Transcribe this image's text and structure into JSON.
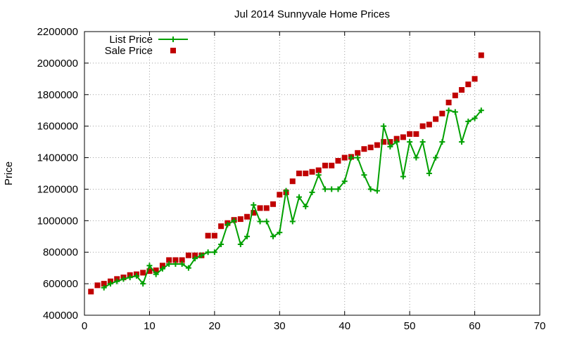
{
  "chart_data": {
    "type": "line",
    "title": "Jul 2014 Sunnyvale Home Prices",
    "xlabel": "",
    "ylabel": "Price",
    "xlim": [
      0,
      70
    ],
    "ylim": [
      400000,
      2200000
    ],
    "xticks": [
      0,
      10,
      20,
      30,
      40,
      50,
      60,
      70
    ],
    "yticks": [
      400000,
      600000,
      800000,
      1000000,
      1200000,
      1400000,
      1600000,
      1800000,
      2000000,
      2200000
    ],
    "grid": true,
    "legend_position": "top-left",
    "colors": {
      "list": "#00a000",
      "sale": "#c00000"
    },
    "series": [
      {
        "name": "List Price",
        "style": "line-plus",
        "points": [
          [
            3,
            575000
          ],
          [
            4,
            600000
          ],
          [
            5,
            615000
          ],
          [
            6,
            630000
          ],
          [
            7,
            640000
          ],
          [
            8,
            650000
          ],
          [
            9,
            600000
          ],
          [
            10,
            715000
          ],
          [
            11,
            660000
          ],
          [
            12,
            695000
          ],
          [
            13,
            725000
          ],
          [
            14,
            725000
          ],
          [
            15,
            725000
          ],
          [
            16,
            700000
          ],
          [
            17,
            760000
          ],
          [
            18,
            780000
          ],
          [
            19,
            800000
          ],
          [
            20,
            800000
          ],
          [
            21,
            850000
          ],
          [
            22,
            975000
          ],
          [
            23,
            1000000
          ],
          [
            24,
            850000
          ],
          [
            25,
            900000
          ],
          [
            26,
            1100000
          ],
          [
            27,
            995000
          ],
          [
            28,
            995000
          ],
          [
            29,
            900000
          ],
          [
            30,
            925000
          ],
          [
            31,
            1190000
          ],
          [
            32,
            995000
          ],
          [
            33,
            1150000
          ],
          [
            34,
            1090000
          ],
          [
            35,
            1180000
          ],
          [
            36,
            1290000
          ],
          [
            37,
            1200000
          ],
          [
            38,
            1200000
          ],
          [
            39,
            1200000
          ],
          [
            40,
            1250000
          ],
          [
            41,
            1400000
          ],
          [
            42,
            1400000
          ],
          [
            43,
            1290000
          ],
          [
            44,
            1200000
          ],
          [
            45,
            1190000
          ],
          [
            46,
            1600000
          ],
          [
            47,
            1470000
          ],
          [
            48,
            1500000
          ],
          [
            49,
            1280000
          ],
          [
            50,
            1500000
          ],
          [
            51,
            1400000
          ],
          [
            52,
            1500000
          ],
          [
            53,
            1300000
          ],
          [
            54,
            1400000
          ],
          [
            55,
            1500000
          ],
          [
            56,
            1700000
          ],
          [
            57,
            1690000
          ],
          [
            58,
            1500000
          ],
          [
            59,
            1630000
          ],
          [
            60,
            1650000
          ],
          [
            61,
            1700000
          ]
        ]
      },
      {
        "name": "Sale Price",
        "style": "square-points",
        "points": [
          [
            1,
            550000
          ],
          [
            2,
            590000
          ],
          [
            3,
            600000
          ],
          [
            4,
            615000
          ],
          [
            5,
            630000
          ],
          [
            6,
            640000
          ],
          [
            7,
            655000
          ],
          [
            8,
            660000
          ],
          [
            9,
            670000
          ],
          [
            10,
            680000
          ],
          [
            11,
            685000
          ],
          [
            12,
            715000
          ],
          [
            13,
            750000
          ],
          [
            14,
            750000
          ],
          [
            15,
            750000
          ],
          [
            16,
            780000
          ],
          [
            17,
            780000
          ],
          [
            18,
            780000
          ],
          [
            19,
            905000
          ],
          [
            20,
            905000
          ],
          [
            21,
            965000
          ],
          [
            22,
            985000
          ],
          [
            23,
            1005000
          ],
          [
            24,
            1010000
          ],
          [
            25,
            1025000
          ],
          [
            26,
            1050000
          ],
          [
            27,
            1080000
          ],
          [
            28,
            1080000
          ],
          [
            29,
            1105000
          ],
          [
            30,
            1165000
          ],
          [
            31,
            1180000
          ],
          [
            32,
            1250000
          ],
          [
            33,
            1300000
          ],
          [
            34,
            1300000
          ],
          [
            35,
            1310000
          ],
          [
            36,
            1320000
          ],
          [
            37,
            1350000
          ],
          [
            38,
            1350000
          ],
          [
            39,
            1380000
          ],
          [
            40,
            1400000
          ],
          [
            41,
            1405000
          ],
          [
            42,
            1430000
          ],
          [
            43,
            1455000
          ],
          [
            44,
            1465000
          ],
          [
            45,
            1480000
          ],
          [
            46,
            1500000
          ],
          [
            47,
            1500000
          ],
          [
            48,
            1520000
          ],
          [
            49,
            1530000
          ],
          [
            50,
            1550000
          ],
          [
            51,
            1550000
          ],
          [
            52,
            1600000
          ],
          [
            53,
            1610000
          ],
          [
            54,
            1645000
          ],
          [
            55,
            1680000
          ],
          [
            56,
            1750000
          ],
          [
            57,
            1795000
          ],
          [
            58,
            1830000
          ],
          [
            59,
            1865000
          ],
          [
            60,
            1900000
          ],
          [
            61,
            2050000
          ]
        ]
      }
    ]
  }
}
